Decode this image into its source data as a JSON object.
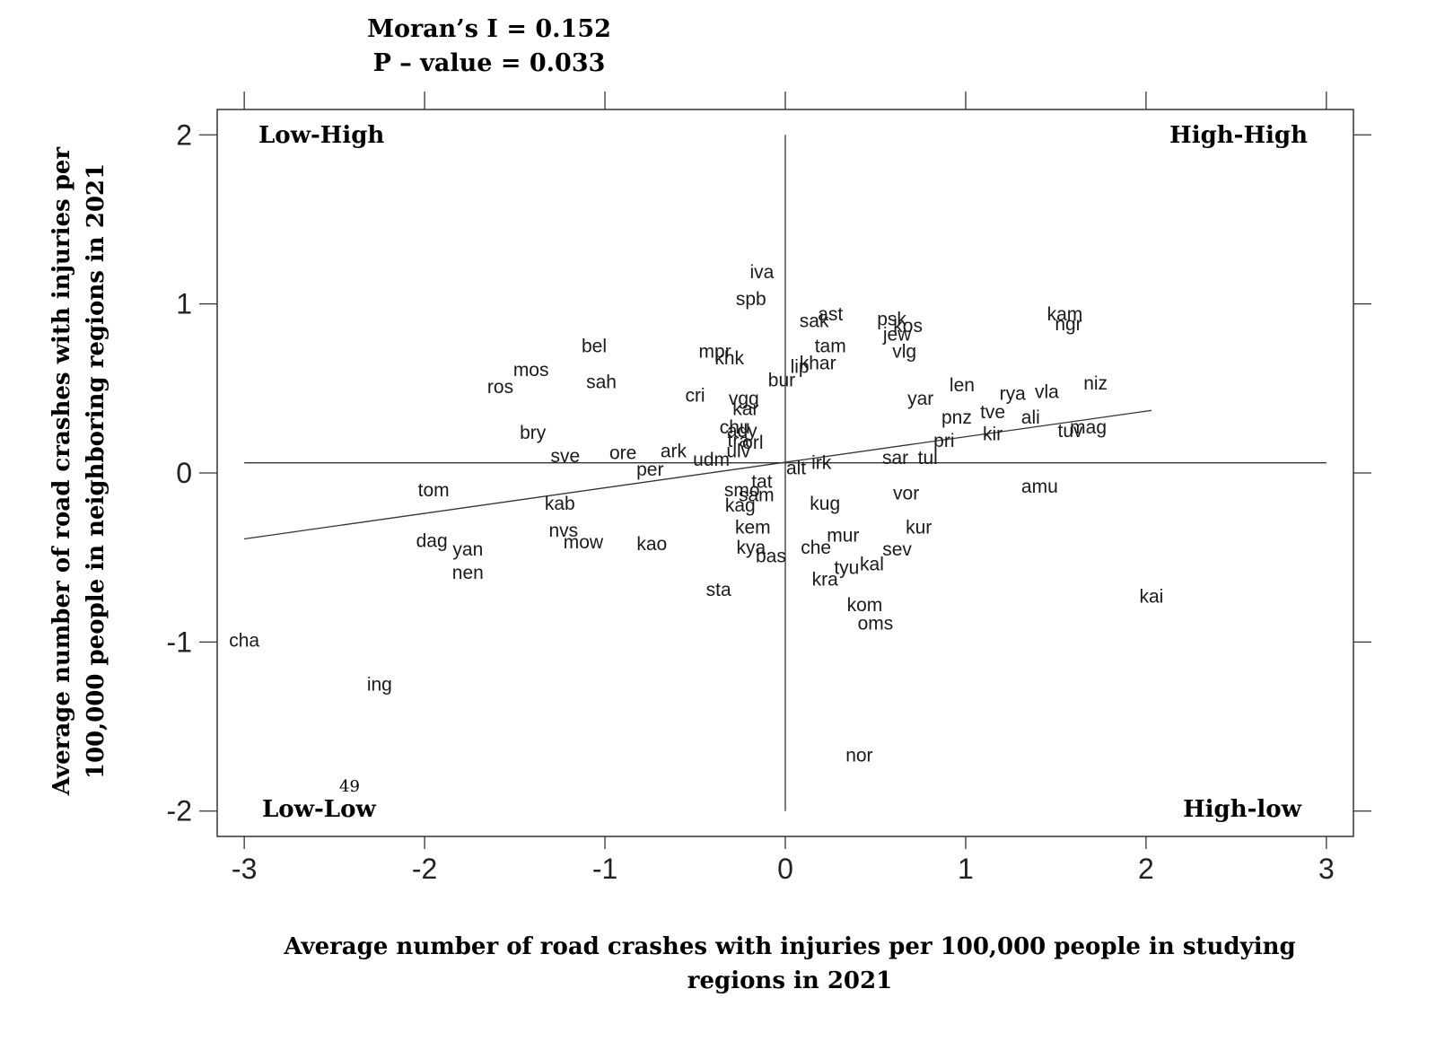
{
  "chart_data": {
    "type": "scatter",
    "title_lines": [
      "Moran’s I = 0.152",
      "P – value = 0.033"
    ],
    "xlabel_lines": [
      "Average number of road crashes with injuries per 100,000 people  in studying",
      "regions in 2021"
    ],
    "ylabel_lines": [
      "Average number of road crashes with injuries per",
      "100,000 people  in neighboring regions in 2021"
    ],
    "xlim": [
      -3.15,
      3.15
    ],
    "ylim": [
      -2.15,
      2.15
    ],
    "xticks": [
      -3,
      -2,
      -1,
      0,
      1,
      2,
      3
    ],
    "xtick_labels": [
      "-3",
      "-2",
      "-1",
      "0",
      "1",
      "2",
      "3"
    ],
    "yticks": [
      -2,
      -1,
      0,
      1,
      2
    ],
    "ytick_labels": [
      "-2",
      "-1",
      "0",
      "1",
      "2"
    ],
    "quadrant_labels": {
      "top_left": "Low-High",
      "top_right": "High-High",
      "bottom_left": "Low-Low",
      "bottom_right": "High-low"
    },
    "page_number": "49",
    "regression_line": {
      "x": [
        -3.0,
        2.03
      ],
      "y": [
        -0.39,
        0.37
      ]
    },
    "mean_lines": {
      "x": 0.0,
      "y": 0.06
    },
    "points": [
      {
        "label": "iva",
        "x": -0.13,
        "y": 1.19
      },
      {
        "label": "spb",
        "x": -0.19,
        "y": 1.03
      },
      {
        "label": "ast",
        "x": 0.25,
        "y": 0.94
      },
      {
        "label": "sak",
        "x": 0.16,
        "y": 0.9
      },
      {
        "label": "psk",
        "x": 0.59,
        "y": 0.91
      },
      {
        "label": "kos",
        "x": 0.68,
        "y": 0.87
      },
      {
        "label": "jew",
        "x": 0.62,
        "y": 0.82
      },
      {
        "label": "kam",
        "x": 1.55,
        "y": 0.94
      },
      {
        "label": "ngr",
        "x": 1.57,
        "y": 0.88
      },
      {
        "label": "tam",
        "x": 0.25,
        "y": 0.75
      },
      {
        "label": "vlg",
        "x": 0.66,
        "y": 0.72
      },
      {
        "label": "bel",
        "x": -1.06,
        "y": 0.75
      },
      {
        "label": "mpr",
        "x": -0.39,
        "y": 0.72
      },
      {
        "label": "khk",
        "x": -0.31,
        "y": 0.68
      },
      {
        "label": "lip",
        "x": 0.08,
        "y": 0.63
      },
      {
        "label": "khar",
        "x": 0.18,
        "y": 0.65
      },
      {
        "label": "mos",
        "x": -1.41,
        "y": 0.61
      },
      {
        "label": "bur",
        "x": -0.02,
        "y": 0.55
      },
      {
        "label": "sah",
        "x": -1.02,
        "y": 0.54
      },
      {
        "label": "ros",
        "x": -1.58,
        "y": 0.51
      },
      {
        "label": "niz",
        "x": 1.72,
        "y": 0.53
      },
      {
        "label": "len",
        "x": 0.98,
        "y": 0.52
      },
      {
        "label": "rya",
        "x": 1.26,
        "y": 0.47
      },
      {
        "label": "vla",
        "x": 1.45,
        "y": 0.48
      },
      {
        "label": "cri",
        "x": -0.5,
        "y": 0.46
      },
      {
        "label": "vgg",
        "x": -0.23,
        "y": 0.44
      },
      {
        "label": "yar",
        "x": 0.75,
        "y": 0.44
      },
      {
        "label": "kar",
        "x": -0.22,
        "y": 0.38
      },
      {
        "label": "pnz",
        "x": 0.95,
        "y": 0.33
      },
      {
        "label": "tve",
        "x": 1.15,
        "y": 0.36
      },
      {
        "label": "ali",
        "x": 1.36,
        "y": 0.33
      },
      {
        "label": "chu",
        "x": -0.28,
        "y": 0.27
      },
      {
        "label": "ady",
        "x": -0.24,
        "y": 0.25
      },
      {
        "label": "tuv",
        "x": 1.58,
        "y": 0.25
      },
      {
        "label": "mag",
        "x": 1.68,
        "y": 0.27
      },
      {
        "label": "bry",
        "x": -1.4,
        "y": 0.24
      },
      {
        "label": "tra",
        "x": -0.26,
        "y": 0.19
      },
      {
        "label": "orl",
        "x": -0.18,
        "y": 0.18
      },
      {
        "label": "kir",
        "x": 1.15,
        "y": 0.23
      },
      {
        "label": "pri",
        "x": 0.88,
        "y": 0.19
      },
      {
        "label": "ulv",
        "x": -0.26,
        "y": 0.13
      },
      {
        "label": "ore",
        "x": -0.9,
        "y": 0.12
      },
      {
        "label": "ark",
        "x": -0.62,
        "y": 0.13
      },
      {
        "label": "sve",
        "x": -1.22,
        "y": 0.1
      },
      {
        "label": "udm",
        "x": -0.41,
        "y": 0.08
      },
      {
        "label": "sar",
        "x": 0.61,
        "y": 0.09
      },
      {
        "label": "tul",
        "x": 0.79,
        "y": 0.09
      },
      {
        "label": "irk",
        "x": 0.2,
        "y": 0.06
      },
      {
        "label": "alt",
        "x": 0.06,
        "y": 0.03
      },
      {
        "label": "per",
        "x": -0.75,
        "y": 0.02
      },
      {
        "label": "tat",
        "x": -0.13,
        "y": -0.05
      },
      {
        "label": "smo",
        "x": -0.24,
        "y": -0.1
      },
      {
        "label": "sam",
        "x": -0.16,
        "y": -0.13
      },
      {
        "label": "tom",
        "x": -1.95,
        "y": -0.1
      },
      {
        "label": "vor",
        "x": 0.67,
        "y": -0.12
      },
      {
        "label": "amu",
        "x": 1.41,
        "y": -0.08
      },
      {
        "label": "kag",
        "x": -0.25,
        "y": -0.19
      },
      {
        "label": "kab",
        "x": -1.25,
        "y": -0.18
      },
      {
        "label": "kug",
        "x": 0.22,
        "y": -0.18
      },
      {
        "label": "nvs",
        "x": -1.23,
        "y": -0.34
      },
      {
        "label": "kem",
        "x": -0.18,
        "y": -0.32
      },
      {
        "label": "kur",
        "x": 0.74,
        "y": -0.32
      },
      {
        "label": "dag",
        "x": -1.96,
        "y": -0.4
      },
      {
        "label": "mow",
        "x": -1.12,
        "y": -0.41
      },
      {
        "label": "kao",
        "x": -0.74,
        "y": -0.42
      },
      {
        "label": "mur",
        "x": 0.32,
        "y": -0.37
      },
      {
        "label": "yan",
        "x": -1.76,
        "y": -0.45
      },
      {
        "label": "kya",
        "x": -0.19,
        "y": -0.44
      },
      {
        "label": "che",
        "x": 0.17,
        "y": -0.44
      },
      {
        "label": "sev",
        "x": 0.62,
        "y": -0.45
      },
      {
        "label": "bas",
        "x": -0.08,
        "y": -0.49
      },
      {
        "label": "tyu",
        "x": 0.34,
        "y": -0.56
      },
      {
        "label": "kal",
        "x": 0.48,
        "y": -0.54
      },
      {
        "label": "nen",
        "x": -1.76,
        "y": -0.59
      },
      {
        "label": "kra",
        "x": 0.22,
        "y": -0.63
      },
      {
        "label": "sta",
        "x": -0.37,
        "y": -0.69
      },
      {
        "label": "kai",
        "x": 2.03,
        "y": -0.73
      },
      {
        "label": "kom",
        "x": 0.44,
        "y": -0.78
      },
      {
        "label": "oms",
        "x": 0.5,
        "y": -0.89
      },
      {
        "label": "cha",
        "x": -3.0,
        "y": -0.99
      },
      {
        "label": "ing",
        "x": -2.25,
        "y": -1.25
      },
      {
        "label": "nor",
        "x": 0.41,
        "y": -1.67
      }
    ]
  }
}
